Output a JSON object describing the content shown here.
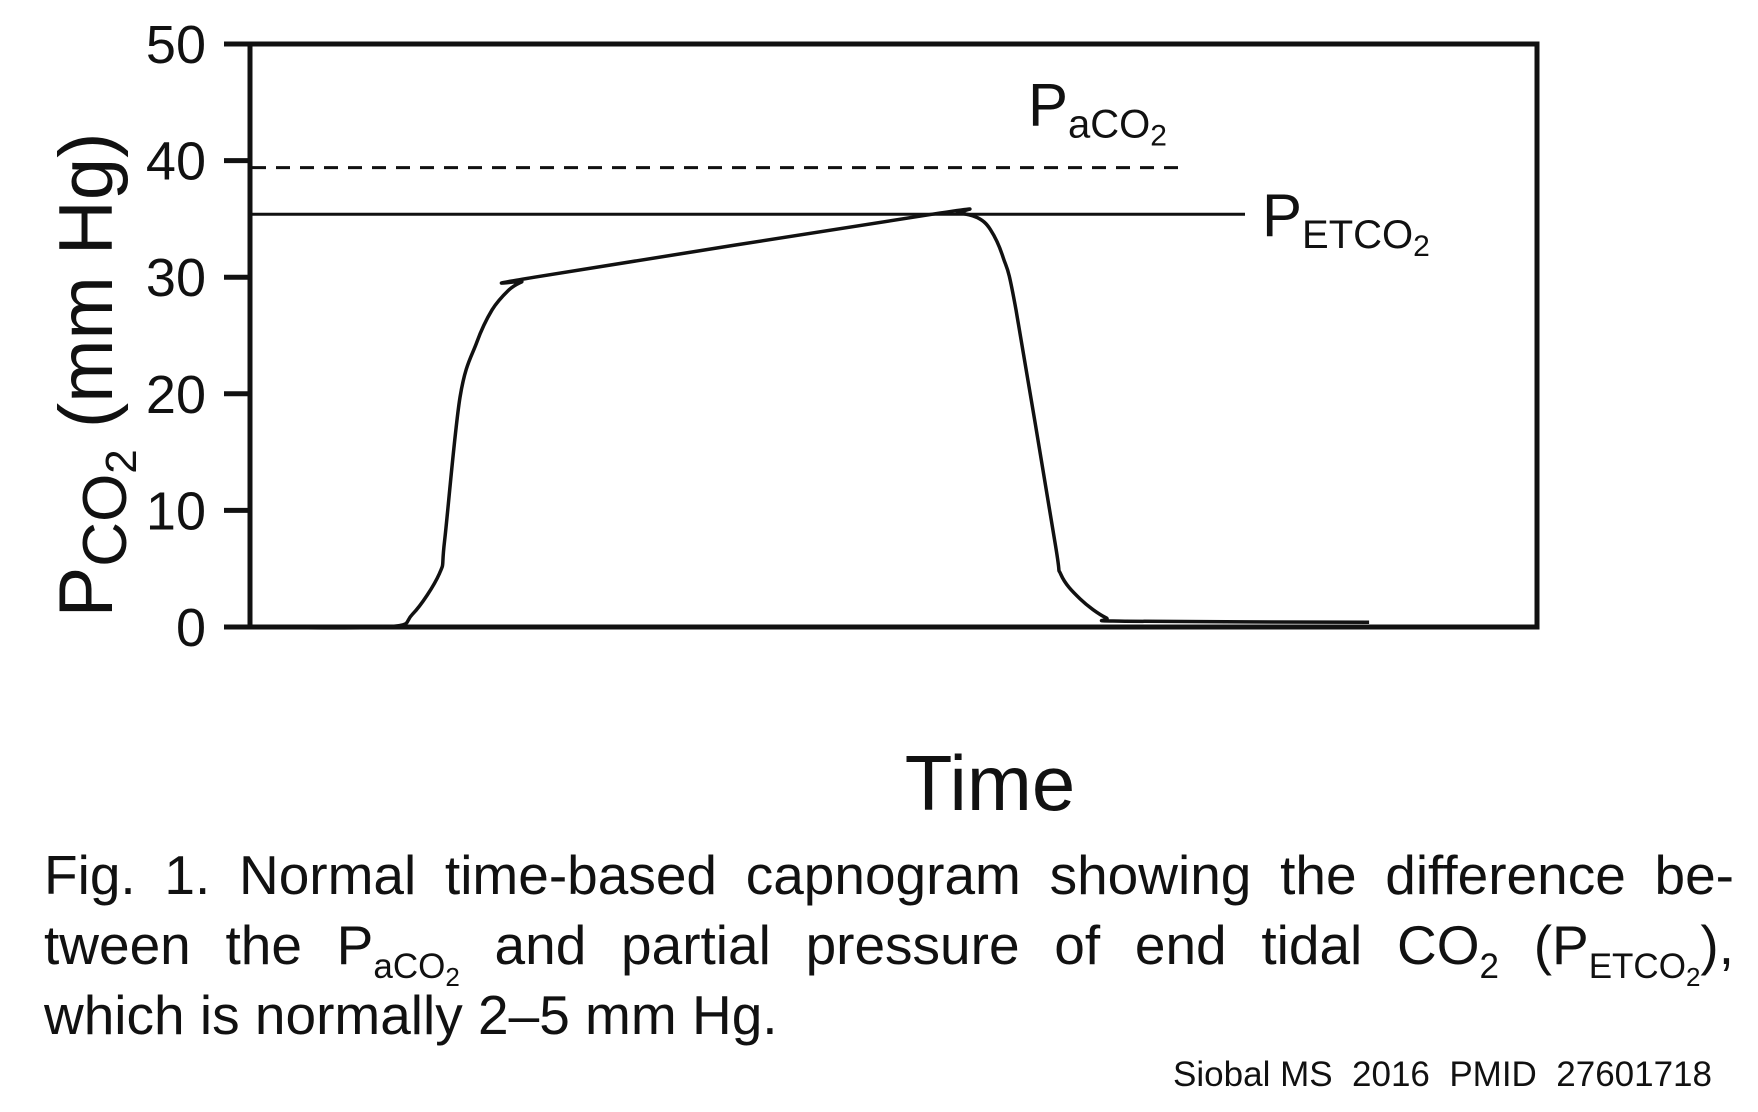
{
  "chart_data": {
    "type": "line",
    "ylabel": {
      "main": "P",
      "sub": "CO",
      "subsub": "2",
      "rest": " (mm Hg)"
    },
    "xlabel": "Time",
    "ylim": [
      0,
      50
    ],
    "yticks": [
      0,
      10,
      20,
      30,
      40,
      50
    ],
    "xlim": [
      0,
      100
    ],
    "grid": false,
    "series": [
      {
        "name": "capnogram",
        "x": [
          0,
          10.5,
          12.5,
          14.6,
          15.0,
          16.2,
          17.5,
          18.7,
          20.0,
          21.0,
          22.0,
          53.0,
          55.0,
          56.5,
          57.5,
          58.5,
          59.5,
          62.5,
          63.0,
          64.5,
          66.5,
          68.0,
          87.0
        ],
        "y": [
          0,
          0,
          1.1,
          4.6,
          7.4,
          19.7,
          24.4,
          27.2,
          28.9,
          29.6,
          30.0,
          35.4,
          35.5,
          35.1,
          34.1,
          31.7,
          27.2,
          7.5,
          4.5,
          2.4,
          0.8,
          0.5,
          0.4
        ]
      }
    ],
    "reference_lines": [
      {
        "value": 39.4,
        "style": "dashed",
        "label": {
          "main": "P",
          "sub": "aCO",
          "subsub": "2"
        }
      },
      {
        "value": 35.4,
        "style": "solid",
        "label": {
          "main": "P",
          "sub": "ETCO",
          "subsub": "2"
        }
      }
    ]
  },
  "caption": {
    "line1": "Fig. 1. Normal time-based capnogram showing the difference be-",
    "line2_a": "tween the P",
    "line2_sub1": "aCO",
    "line2_subsub1": "2",
    "line2_b": " and partial pressure of end tidal CO",
    "line2_sub2": "2",
    "line2_c": " (P",
    "line2_sub3": "ETCO",
    "line2_subsub3": "2",
    "line2_d": "),",
    "line3": "which is normally 2–5 mm Hg."
  },
  "source": "Siobal MS  2016  PMID  27601718"
}
